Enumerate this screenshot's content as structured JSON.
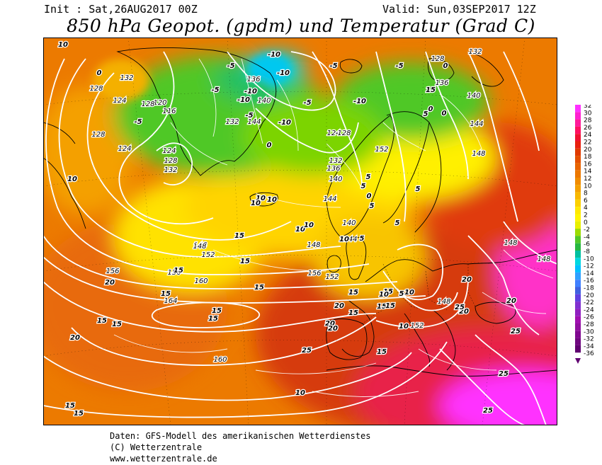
{
  "header": {
    "init": "Init : Sat,26AUG2017 00Z",
    "valid": "Valid: Sun,03SEP2017 12Z",
    "title": "850 hPa Geopot. (gpdm) und Temperatur (Grad C)"
  },
  "footer": {
    "line1": "Daten: GFS-Modell des amerikanischen Wetterdienstes",
    "line2": "(C) Wetterzentrale",
    "line3": "www.wetterzentrale.de"
  },
  "colorbar": {
    "levels": [
      "32",
      "30",
      "28",
      "26",
      "24",
      "22",
      "20",
      "18",
      "16",
      "14",
      "12",
      "10",
      "8",
      "6",
      "4",
      "2",
      "0",
      "-2",
      "-4",
      "-6",
      "-8",
      "-10",
      "-12",
      "-14",
      "-16",
      "-18",
      "-20",
      "-22",
      "-24",
      "-26",
      "-28",
      "-30",
      "-32",
      "-34",
      "-36"
    ],
    "colors": [
      "#ff30ff",
      "#ff20d0",
      "#ff1a9a",
      "#ff1060",
      "#f01030",
      "#e8200f",
      "#e03a00",
      "#e45000",
      "#e86400",
      "#ec7800",
      "#f08c00",
      "#f4a000",
      "#f8b800",
      "#fcd000",
      "#ffe800",
      "#fff400",
      "#e8f000",
      "#9cdc00",
      "#50c828",
      "#28b840",
      "#00c0a0",
      "#00d8e0",
      "#00c0ff",
      "#30a0ff",
      "#4080ff",
      "#4060e0",
      "#6040e0",
      "#8030d0",
      "#9020c0",
      "#a010b0",
      "#9010a0",
      "#800890",
      "#700880",
      "#600070"
    ]
  },
  "map_labels": {
    "geopotential": [
      "120",
      "116",
      "124",
      "124",
      "128",
      "128",
      "132",
      "132",
      "128",
      "124",
      "128",
      "136",
      "140",
      "132",
      "144",
      "124",
      "128",
      "132",
      "136",
      "140",
      "144",
      "148",
      "152",
      "152",
      "156",
      "160",
      "164",
      "160",
      "156",
      "156",
      "152",
      "148",
      "148",
      "148",
      "148",
      "148",
      "140",
      "144",
      "152",
      "148",
      "128",
      "132",
      "136",
      "140",
      "144"
    ],
    "temperature": [
      "10",
      "10",
      "0",
      "-5",
      "-10",
      "-10",
      "-5",
      "-5",
      "-10",
      "-10",
      "-5",
      "-10",
      "-5",
      "0",
      "-5",
      "-10",
      "-5",
      "0",
      "5",
      "5",
      "5",
      "10",
      "10",
      "10",
      "10",
      "10",
      "15",
      "15",
      "15",
      "15",
      "15",
      "15",
      "15",
      "15",
      "15",
      "15",
      "15",
      "15",
      "15",
      "15",
      "15",
      "20",
      "20",
      "20",
      "20",
      "20",
      "20",
      "20",
      "20",
      "25",
      "25",
      "25",
      "25",
      "25",
      "10",
      "10",
      "10",
      "10",
      "10",
      "5",
      "5",
      "5",
      "5",
      "5",
      "0",
      "0",
      "0",
      "15",
      "15",
      "15"
    ]
  }
}
